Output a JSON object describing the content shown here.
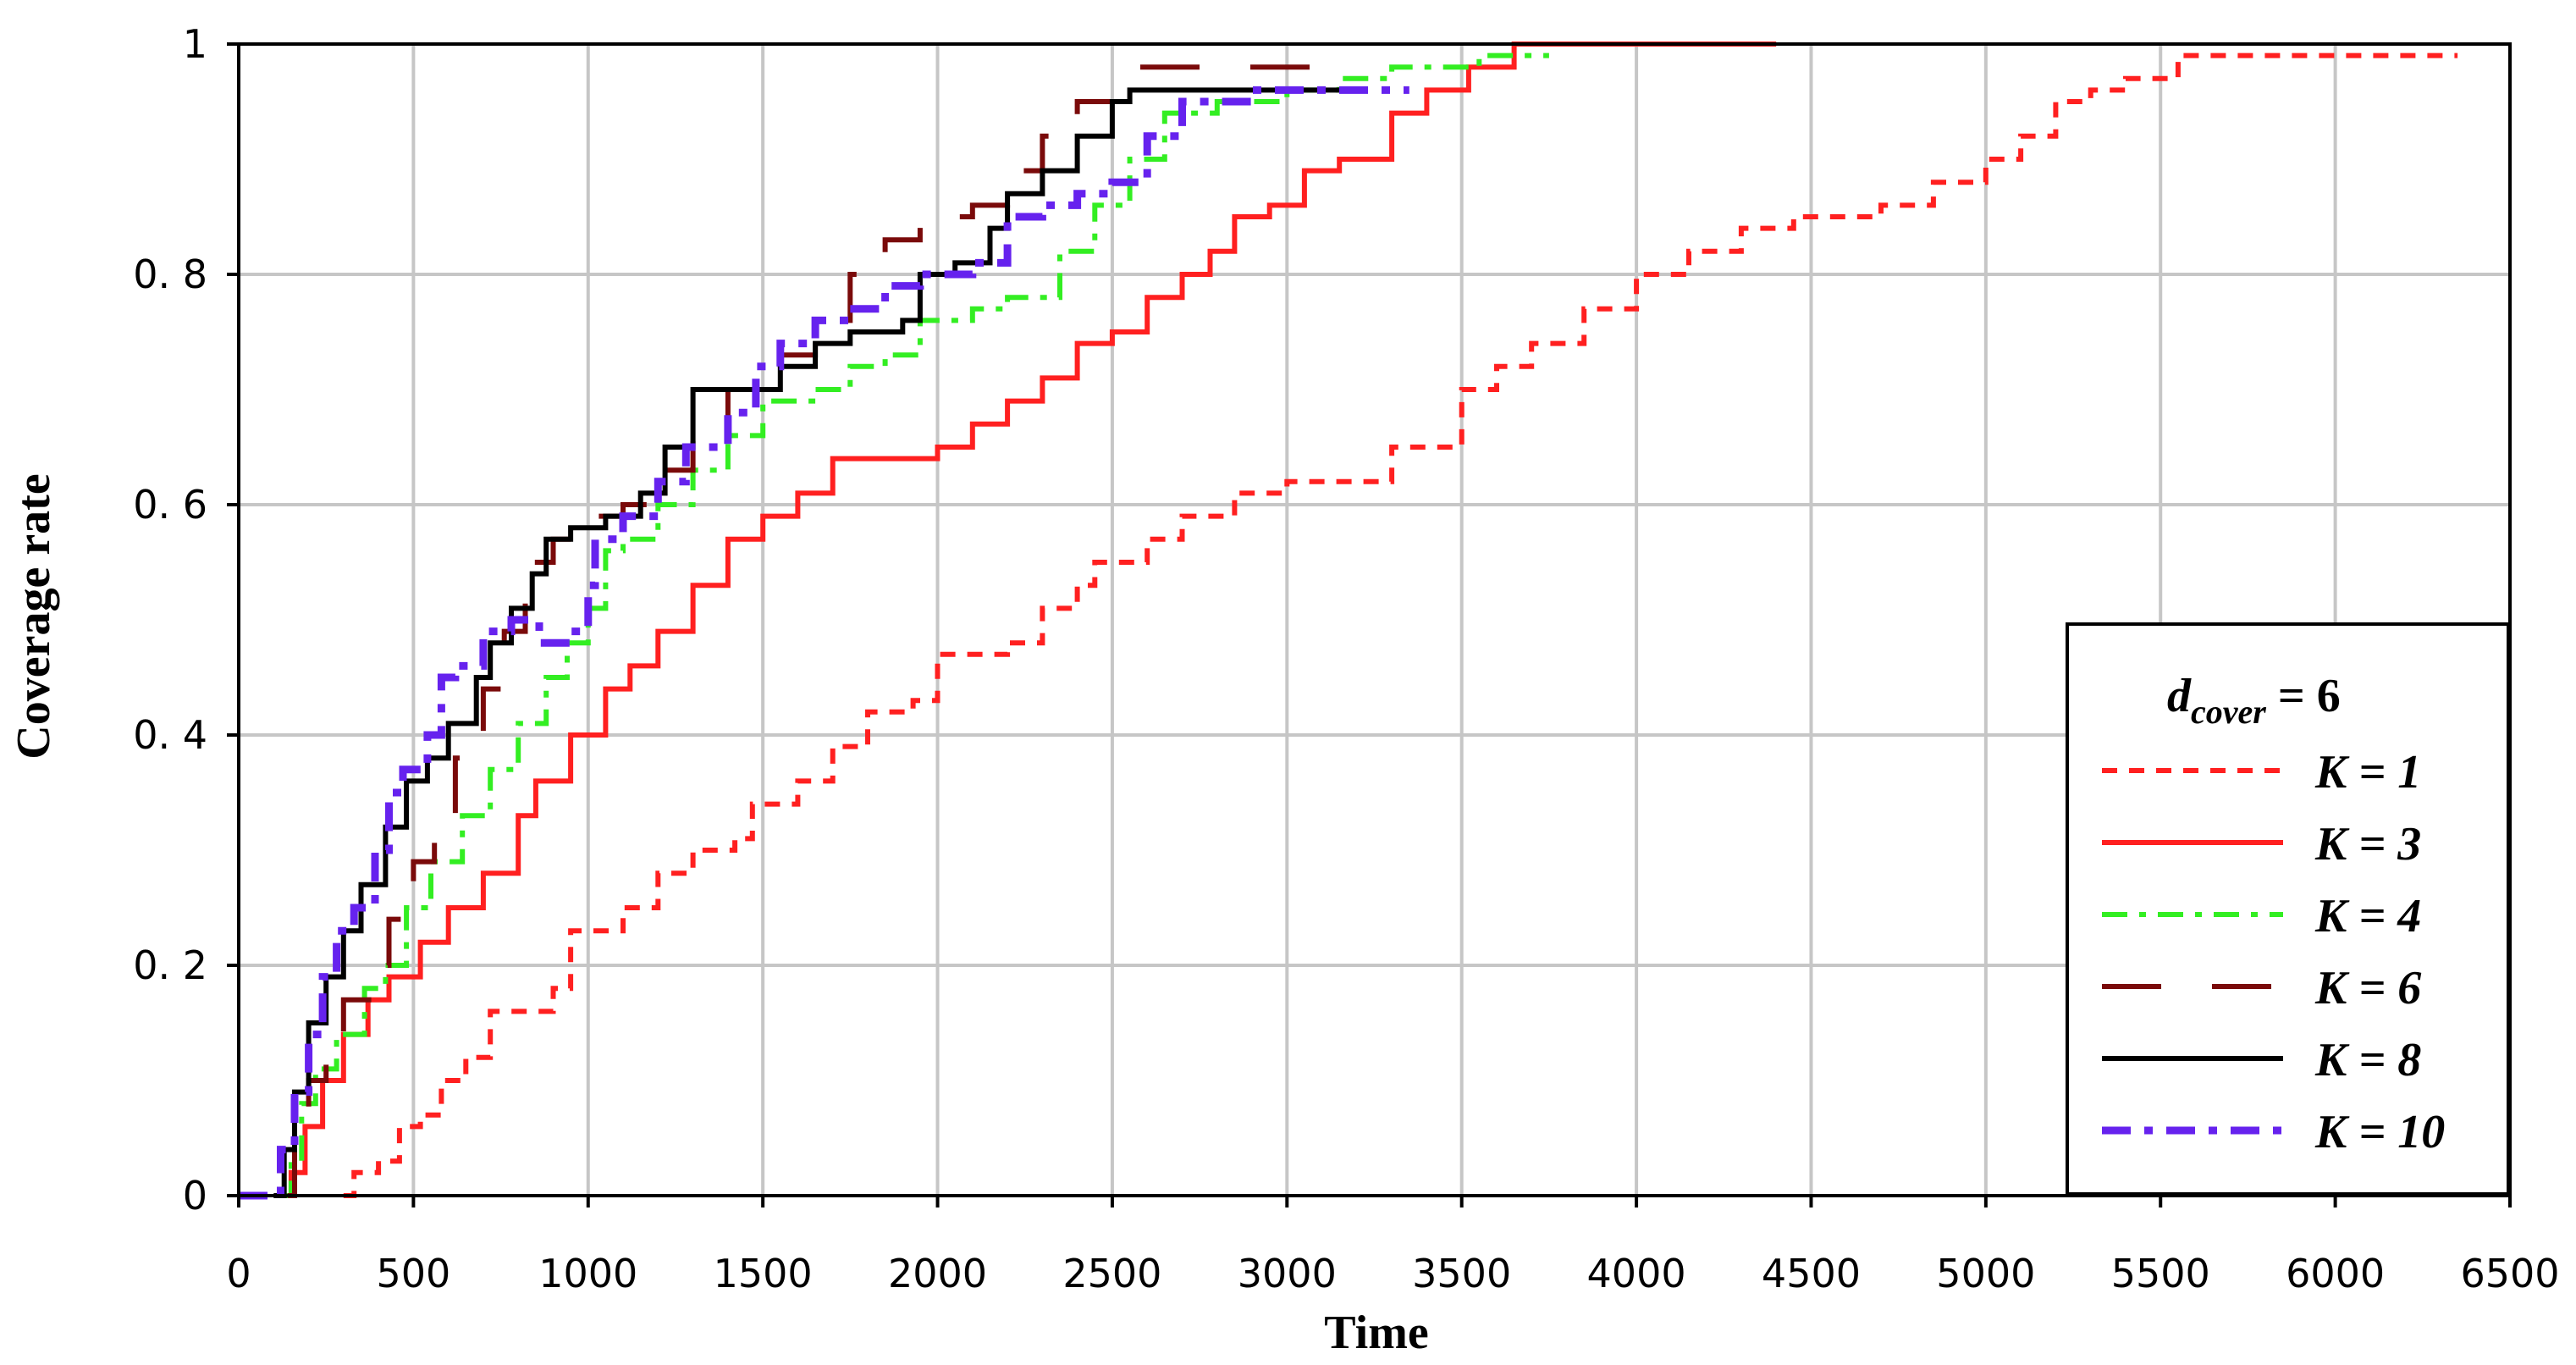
{
  "chart_data": {
    "type": "line",
    "xlabel": "Time",
    "ylabel": "Coverage rate",
    "xlim": [
      0,
      6500
    ],
    "ylim": [
      0,
      1
    ],
    "x_ticks": [
      "0",
      "500",
      "1000",
      "1500",
      "2000",
      "2500",
      "3000",
      "3500",
      "4000",
      "4500",
      "5000",
      "5500",
      "6000",
      "6500"
    ],
    "y_ticks": [
      "0",
      "0. 2",
      "0. 4",
      "0. 6",
      "0. 8",
      "1"
    ],
    "grid": true,
    "legend": {
      "placement": "bottom-right",
      "title_main": "d",
      "title_sub": "cover",
      "title_suffix": " = 6"
    },
    "series": [
      {
        "name": "K = 1",
        "color": "#ff2020",
        "style": "short-dash",
        "width": 6,
        "points": [
          [
            300,
            0
          ],
          [
            330,
            0.02
          ],
          [
            400,
            0.03
          ],
          [
            460,
            0.06
          ],
          [
            520,
            0.07
          ],
          [
            580,
            0.1
          ],
          [
            650,
            0.12
          ],
          [
            720,
            0.16
          ],
          [
            820,
            0.16
          ],
          [
            900,
            0.18
          ],
          [
            950,
            0.23
          ],
          [
            1050,
            0.23
          ],
          [
            1100,
            0.25
          ],
          [
            1200,
            0.28
          ],
          [
            1300,
            0.3
          ],
          [
            1420,
            0.31
          ],
          [
            1470,
            0.34
          ],
          [
            1600,
            0.36
          ],
          [
            1700,
            0.39
          ],
          [
            1800,
            0.42
          ],
          [
            1930,
            0.43
          ],
          [
            2000,
            0.47
          ],
          [
            2200,
            0.48
          ],
          [
            2300,
            0.51
          ],
          [
            2400,
            0.53
          ],
          [
            2450,
            0.55
          ],
          [
            2600,
            0.57
          ],
          [
            2700,
            0.59
          ],
          [
            2850,
            0.61
          ],
          [
            3000,
            0.62
          ],
          [
            3150,
            0.62
          ],
          [
            3300,
            0.65
          ],
          [
            3500,
            0.7
          ],
          [
            3600,
            0.72
          ],
          [
            3700,
            0.74
          ],
          [
            3850,
            0.77
          ],
          [
            4000,
            0.8
          ],
          [
            4150,
            0.82
          ],
          [
            4300,
            0.84
          ],
          [
            4450,
            0.85
          ],
          [
            4550,
            0.85
          ],
          [
            4700,
            0.86
          ],
          [
            4850,
            0.88
          ],
          [
            5000,
            0.9
          ],
          [
            5100,
            0.92
          ],
          [
            5200,
            0.95
          ],
          [
            5300,
            0.96
          ],
          [
            5400,
            0.97
          ],
          [
            5550,
            0.99
          ],
          [
            5700,
            0.99
          ],
          [
            6000,
            0.99
          ],
          [
            6350,
            0.99
          ]
        ]
      },
      {
        "name": "K = 3",
        "color": "#ff2020",
        "style": "solid",
        "width": 6,
        "points": [
          [
            120,
            0
          ],
          [
            150,
            0.02
          ],
          [
            190,
            0.06
          ],
          [
            240,
            0.1
          ],
          [
            300,
            0.14
          ],
          [
            370,
            0.17
          ],
          [
            430,
            0.19
          ],
          [
            520,
            0.22
          ],
          [
            600,
            0.25
          ],
          [
            700,
            0.28
          ],
          [
            800,
            0.33
          ],
          [
            850,
            0.36
          ],
          [
            950,
            0.4
          ],
          [
            1050,
            0.44
          ],
          [
            1120,
            0.46
          ],
          [
            1200,
            0.49
          ],
          [
            1300,
            0.53
          ],
          [
            1400,
            0.57
          ],
          [
            1500,
            0.59
          ],
          [
            1600,
            0.61
          ],
          [
            1700,
            0.64
          ],
          [
            1800,
            0.64
          ],
          [
            2000,
            0.65
          ],
          [
            2100,
            0.67
          ],
          [
            2200,
            0.69
          ],
          [
            2300,
            0.71
          ],
          [
            2400,
            0.74
          ],
          [
            2500,
            0.75
          ],
          [
            2600,
            0.78
          ],
          [
            2700,
            0.8
          ],
          [
            2780,
            0.82
          ],
          [
            2850,
            0.85
          ],
          [
            2950,
            0.86
          ],
          [
            3050,
            0.89
          ],
          [
            3150,
            0.9
          ],
          [
            3300,
            0.94
          ],
          [
            3400,
            0.96
          ],
          [
            3520,
            0.98
          ],
          [
            3650,
            1
          ],
          [
            3800,
            1
          ],
          [
            4000,
            1
          ],
          [
            4400,
            1
          ]
        ]
      },
      {
        "name": "K = 4",
        "color": "#33ee22",
        "style": "dash-dot",
        "width": 6,
        "points": [
          [
            120,
            0
          ],
          [
            150,
            0.03
          ],
          [
            180,
            0.08
          ],
          [
            220,
            0.11
          ],
          [
            280,
            0.14
          ],
          [
            360,
            0.18
          ],
          [
            420,
            0.2
          ],
          [
            480,
            0.25
          ],
          [
            550,
            0.29
          ],
          [
            640,
            0.33
          ],
          [
            720,
            0.37
          ],
          [
            800,
            0.41
          ],
          [
            880,
            0.45
          ],
          [
            940,
            0.48
          ],
          [
            1000,
            0.51
          ],
          [
            1050,
            0.56
          ],
          [
            1100,
            0.57
          ],
          [
            1200,
            0.6
          ],
          [
            1300,
            0.63
          ],
          [
            1400,
            0.66
          ],
          [
            1500,
            0.69
          ],
          [
            1650,
            0.7
          ],
          [
            1750,
            0.72
          ],
          [
            1850,
            0.73
          ],
          [
            1950,
            0.76
          ],
          [
            2100,
            0.77
          ],
          [
            2200,
            0.78
          ],
          [
            2300,
            0.78
          ],
          [
            2350,
            0.82
          ],
          [
            2450,
            0.86
          ],
          [
            2550,
            0.9
          ],
          [
            2650,
            0.94
          ],
          [
            2800,
            0.95
          ],
          [
            3000,
            0.96
          ],
          [
            3150,
            0.97
          ],
          [
            3300,
            0.98
          ],
          [
            3550,
            0.99
          ],
          [
            3750,
            0.99
          ]
        ]
      },
      {
        "name": "K = 6",
        "color": "#7a0a0a",
        "style": "long-dash",
        "width": 6,
        "points": [
          [
            140,
            0
          ],
          [
            160,
            0.05
          ],
          [
            200,
            0.1
          ],
          [
            250,
            0.13
          ],
          [
            300,
            0.17
          ],
          [
            380,
            0.2
          ],
          [
            430,
            0.24
          ],
          [
            500,
            0.29
          ],
          [
            560,
            0.33
          ],
          [
            620,
            0.38
          ],
          [
            700,
            0.44
          ],
          [
            760,
            0.49
          ],
          [
            820,
            0.55
          ],
          [
            900,
            0.57
          ],
          [
            1000,
            0.59
          ],
          [
            1100,
            0.6
          ],
          [
            1200,
            0.63
          ],
          [
            1300,
            0.67
          ],
          [
            1400,
            0.7
          ],
          [
            1550,
            0.73
          ],
          [
            1650,
            0.76
          ],
          [
            1750,
            0.8
          ],
          [
            1850,
            0.83
          ],
          [
            1950,
            0.85
          ],
          [
            2100,
            0.86
          ],
          [
            2200,
            0.89
          ],
          [
            2300,
            0.92
          ],
          [
            2400,
            0.95
          ],
          [
            2550,
            0.98
          ],
          [
            2700,
            0.98
          ],
          [
            2900,
            0.98
          ],
          [
            3100,
            0.98
          ]
        ]
      },
      {
        "name": "K = 8",
        "color": "#000000",
        "style": "solid",
        "width": 6,
        "points": [
          [
            100,
            0
          ],
          [
            130,
            0.04
          ],
          [
            160,
            0.09
          ],
          [
            200,
            0.15
          ],
          [
            250,
            0.19
          ],
          [
            300,
            0.23
          ],
          [
            350,
            0.27
          ],
          [
            420,
            0.32
          ],
          [
            480,
            0.36
          ],
          [
            540,
            0.38
          ],
          [
            600,
            0.41
          ],
          [
            680,
            0.45
          ],
          [
            720,
            0.48
          ],
          [
            780,
            0.51
          ],
          [
            840,
            0.54
          ],
          [
            880,
            0.57
          ],
          [
            950,
            0.58
          ],
          [
            1050,
            0.59
          ],
          [
            1150,
            0.61
          ],
          [
            1220,
            0.65
          ],
          [
            1300,
            0.7
          ],
          [
            1450,
            0.7
          ],
          [
            1550,
            0.72
          ],
          [
            1650,
            0.74
          ],
          [
            1750,
            0.75
          ],
          [
            1900,
            0.76
          ],
          [
            1950,
            0.8
          ],
          [
            2050,
            0.81
          ],
          [
            2150,
            0.84
          ],
          [
            2200,
            0.87
          ],
          [
            2300,
            0.89
          ],
          [
            2400,
            0.92
          ],
          [
            2500,
            0.95
          ],
          [
            2550,
            0.96
          ],
          [
            2700,
            0.96
          ],
          [
            3000,
            0.96
          ],
          [
            3150,
            0.96
          ]
        ]
      },
      {
        "name": "K = 10",
        "color": "#6622ee",
        "style": "dash-dot",
        "width": 9,
        "points": [
          [
            0,
            0
          ],
          [
            80,
            0
          ],
          [
            120,
            0.04
          ],
          [
            160,
            0.09
          ],
          [
            200,
            0.14
          ],
          [
            240,
            0.19
          ],
          [
            280,
            0.23
          ],
          [
            330,
            0.25
          ],
          [
            390,
            0.3
          ],
          [
            430,
            0.35
          ],
          [
            470,
            0.37
          ],
          [
            540,
            0.4
          ],
          [
            580,
            0.45
          ],
          [
            620,
            0.46
          ],
          [
            700,
            0.49
          ],
          [
            780,
            0.5
          ],
          [
            860,
            0.48
          ],
          [
            950,
            0.49
          ],
          [
            1000,
            0.53
          ],
          [
            1020,
            0.57
          ],
          [
            1100,
            0.59
          ],
          [
            1200,
            0.62
          ],
          [
            1280,
            0.65
          ],
          [
            1350,
            0.65
          ],
          [
            1400,
            0.68
          ],
          [
            1480,
            0.72
          ],
          [
            1550,
            0.74
          ],
          [
            1650,
            0.76
          ],
          [
            1750,
            0.77
          ],
          [
            1850,
            0.79
          ],
          [
            1950,
            0.8
          ],
          [
            2100,
            0.81
          ],
          [
            2200,
            0.85
          ],
          [
            2300,
            0.86
          ],
          [
            2400,
            0.87
          ],
          [
            2500,
            0.88
          ],
          [
            2600,
            0.92
          ],
          [
            2700,
            0.95
          ],
          [
            2900,
            0.96
          ],
          [
            3100,
            0.96
          ],
          [
            3350,
            0.96
          ]
        ]
      }
    ]
  }
}
